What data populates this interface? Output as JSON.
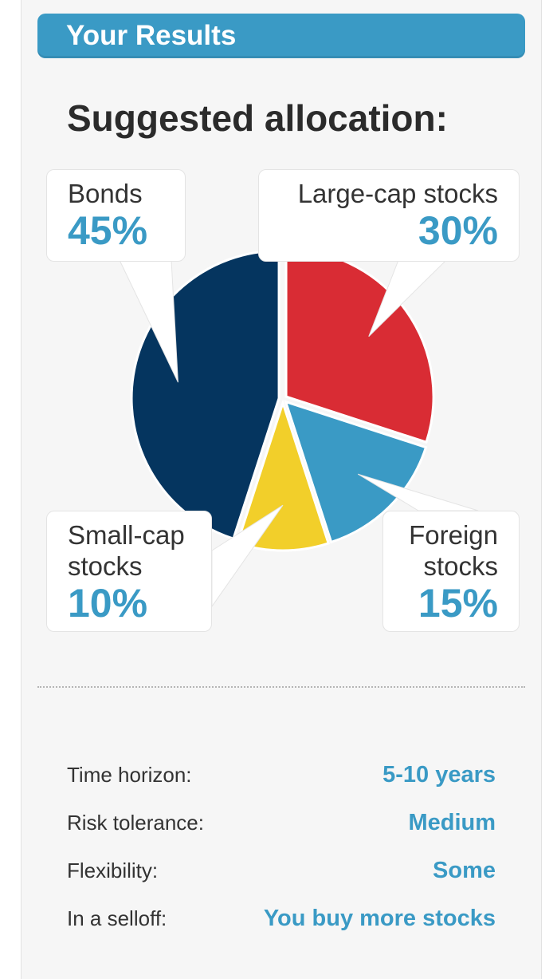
{
  "header": {
    "title": "Your Results"
  },
  "subtitle": "Suggested allocation:",
  "chart_data": {
    "type": "pie",
    "title": "",
    "slices": [
      {
        "label_lines": [
          "Large-cap stocks"
        ],
        "value": 30,
        "display": "30%",
        "color": "#d92c34"
      },
      {
        "label_lines": [
          "Foreign",
          "stocks"
        ],
        "value": 15,
        "display": "15%",
        "color": "#3a9ac5"
      },
      {
        "label_lines": [
          "Small-cap",
          "stocks"
        ],
        "value": 10,
        "display": "10%",
        "color": "#f2cf2a"
      },
      {
        "label_lines": [
          "Bonds"
        ],
        "value": 45,
        "display": "45%",
        "color": "#05355f"
      }
    ]
  },
  "info": [
    {
      "label": "Time horizon:",
      "value": "5-10 years"
    },
    {
      "label": "Risk tolerance:",
      "value": "Medium"
    },
    {
      "label": "Flexibility:",
      "value": "Some"
    },
    {
      "label": "In a selloff:",
      "value": "You buy more stocks"
    }
  ]
}
